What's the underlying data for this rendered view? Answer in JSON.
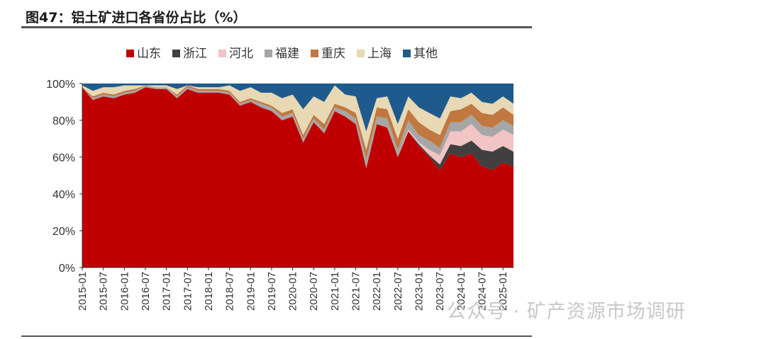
{
  "header": {
    "title": "图47：铝土矿进口各省份占比（%）"
  },
  "watermark": {
    "text": "公众号 · 矿产资源市场调研"
  },
  "chart_data": {
    "type": "area",
    "stacked": true,
    "title": "图47：铝土矿进口各省份占比（%）",
    "xlabel": "",
    "ylabel": "",
    "ylim": [
      0,
      100
    ],
    "y_ticks": [
      "0%",
      "20%",
      "40%",
      "60%",
      "80%",
      "100%"
    ],
    "x_ticks": [
      "2015-01",
      "2015-07",
      "2016-01",
      "2016-07",
      "2017-01",
      "2017-07",
      "2018-01",
      "2018-07",
      "2019-01",
      "2019-07",
      "2020-01",
      "2020-07",
      "2021-01",
      "2021-07",
      "2022-01",
      "2022-07",
      "2023-01",
      "2023-07",
      "2024-01",
      "2024-07",
      "2025-01"
    ],
    "legend_position": "top-center",
    "x": [
      "2015-01",
      "2015-04",
      "2015-07",
      "2015-10",
      "2016-01",
      "2016-04",
      "2016-07",
      "2016-10",
      "2017-01",
      "2017-04",
      "2017-07",
      "2017-10",
      "2018-01",
      "2018-04",
      "2018-07",
      "2018-10",
      "2019-01",
      "2019-04",
      "2019-07",
      "2019-10",
      "2020-01",
      "2020-04",
      "2020-07",
      "2020-10",
      "2021-01",
      "2021-04",
      "2021-07",
      "2021-10",
      "2022-01",
      "2022-04",
      "2022-07",
      "2022-10",
      "2023-01",
      "2023-04",
      "2023-07",
      "2023-10",
      "2024-01",
      "2024-04",
      "2024-07",
      "2024-10",
      "2025-01",
      "2025-03"
    ],
    "series": [
      {
        "name": "山东",
        "color": "#c00000",
        "values": [
          98,
          91,
          93,
          92,
          94,
          95,
          98,
          97,
          97,
          92,
          97,
          95,
          95,
          95,
          94,
          88,
          90,
          87,
          85,
          80,
          82,
          68,
          79,
          73,
          85,
          82,
          78,
          54,
          78,
          76,
          60,
          74,
          66,
          60,
          53,
          62,
          60,
          62,
          55,
          53,
          57,
          55
        ]
      },
      {
        "name": "浙江",
        "color": "#404040",
        "values": [
          0,
          0,
          0,
          0,
          0,
          0,
          0,
          0,
          0,
          0,
          0,
          0,
          0,
          0,
          0,
          0,
          0,
          0,
          0,
          0,
          0,
          0,
          0,
          0,
          0,
          0,
          0,
          0,
          0,
          0,
          0,
          0,
          1,
          1,
          3,
          5,
          6,
          7,
          9,
          10,
          9,
          8
        ]
      },
      {
        "name": "河北",
        "color": "#f2c4c4",
        "values": [
          0,
          0,
          0,
          0,
          0,
          0,
          0,
          0,
          0,
          0,
          0,
          0,
          0,
          0,
          0,
          0,
          0,
          0,
          0,
          0,
          0,
          0,
          0,
          0,
          0,
          0,
          0,
          0,
          0,
          0,
          0,
          1,
          1,
          3,
          5,
          7,
          8,
          9,
          8,
          8,
          9,
          9
        ]
      },
      {
        "name": "福建",
        "color": "#a6a6a6",
        "values": [
          0,
          1,
          1,
          1,
          1,
          1,
          1,
          1,
          1,
          1,
          1,
          1,
          1,
          1,
          1,
          1,
          1,
          2,
          2,
          2,
          2,
          2,
          2,
          2,
          2,
          3,
          3,
          5,
          4,
          5,
          4,
          5,
          4,
          5,
          4,
          5,
          5,
          5,
          5,
          5,
          5,
          5
        ]
      },
      {
        "name": "重庆",
        "color": "#c07840",
        "values": [
          0,
          1,
          1,
          1,
          1,
          1,
          0,
          0,
          0,
          1,
          1,
          1,
          1,
          1,
          1,
          1,
          1,
          1,
          1,
          2,
          2,
          2,
          2,
          3,
          2,
          2,
          3,
          5,
          5,
          5,
          6,
          6,
          7,
          6,
          7,
          6,
          7,
          6,
          7,
          7,
          7,
          6
        ]
      },
      {
        "name": "上海",
        "color": "#e8d8b4",
        "values": [
          1,
          3,
          3,
          4,
          3,
          2,
          0,
          1,
          1,
          3,
          0,
          1,
          1,
          1,
          3,
          6,
          6,
          5,
          7,
          8,
          8,
          14,
          10,
          12,
          10,
          7,
          9,
          10,
          5,
          7,
          8,
          7,
          8,
          9,
          9,
          8,
          6,
          6,
          6,
          6,
          6,
          6
        ]
      },
      {
        "name": "其他",
        "color": "#1f5a8c",
        "values": [
          1,
          4,
          2,
          2,
          1,
          1,
          1,
          1,
          1,
          3,
          1,
          2,
          2,
          2,
          1,
          4,
          2,
          5,
          5,
          8,
          6,
          14,
          7,
          10,
          1,
          6,
          7,
          26,
          8,
          7,
          22,
          7,
          13,
          16,
          19,
          7,
          8,
          5,
          10,
          11,
          7,
          11
        ]
      }
    ]
  }
}
